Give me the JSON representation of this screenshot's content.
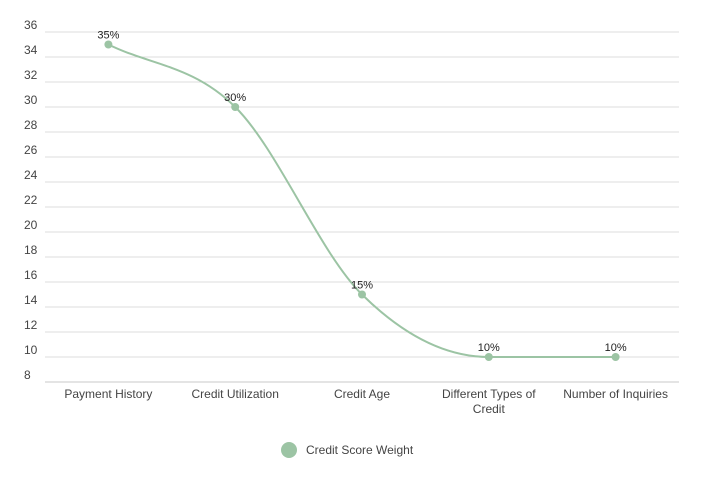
{
  "chart_data": {
    "type": "line",
    "title": "",
    "xlabel": "",
    "ylabel": "",
    "categories": [
      "Payment History",
      "Credit Utilization",
      "Credit Age",
      "Different Types of Credit",
      "Number of Inquiries"
    ],
    "series": [
      {
        "name": "Credit Score Weight",
        "values": [
          35,
          30,
          15,
          10,
          10
        ],
        "labels": [
          "35%",
          "30%",
          "15%",
          "10%",
          "10%"
        ],
        "color": "#9cc4a4",
        "smooth": true
      }
    ],
    "ylim": [
      8,
      36
    ],
    "yticks": [
      "8",
      "10",
      "12",
      "14",
      "16",
      "18",
      "20",
      "22",
      "24",
      "26",
      "28",
      "30",
      "32",
      "34",
      "36"
    ],
    "grid": true,
    "legend": "bottom-center"
  },
  "colors": {
    "series": "#9cc4a4",
    "grid": "#dddddd",
    "text": "#444444"
  }
}
